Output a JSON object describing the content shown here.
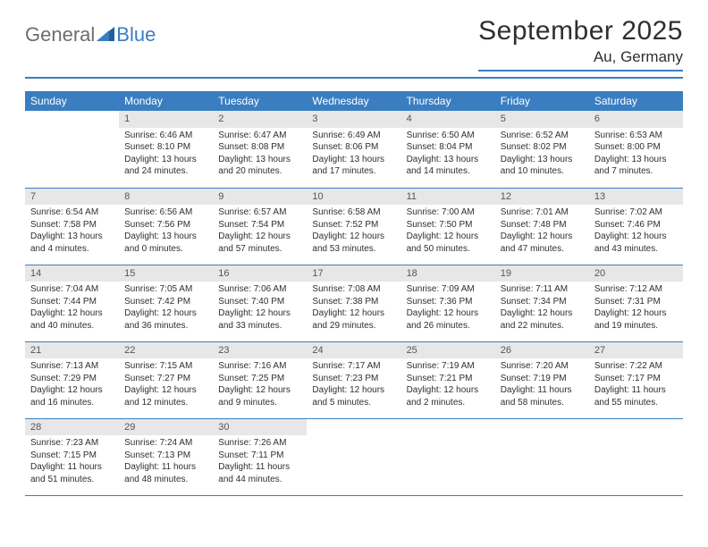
{
  "logo": {
    "text_general": "General",
    "text_blue": "Blue"
  },
  "title": "September 2025",
  "location": "Au, Germany",
  "colors": {
    "brand_blue": "#3a7ec1",
    "header_text": "#ffffff",
    "daynum_bg": "#e7e7e7",
    "body_text": "#2f2f2f",
    "logo_gray": "#6d6e71",
    "background": "#ffffff"
  },
  "typography": {
    "title_fontsize": 30,
    "location_fontsize": 17,
    "dayheader_fontsize": 12,
    "cell_fontsize": 10
  },
  "day_headers": [
    "Sunday",
    "Monday",
    "Tuesday",
    "Wednesday",
    "Thursday",
    "Friday",
    "Saturday"
  ],
  "weeks": [
    [
      null,
      {
        "n": "1",
        "sunrise": "Sunrise: 6:46 AM",
        "sunset": "Sunset: 8:10 PM",
        "day1": "Daylight: 13 hours",
        "day2": "and 24 minutes."
      },
      {
        "n": "2",
        "sunrise": "Sunrise: 6:47 AM",
        "sunset": "Sunset: 8:08 PM",
        "day1": "Daylight: 13 hours",
        "day2": "and 20 minutes."
      },
      {
        "n": "3",
        "sunrise": "Sunrise: 6:49 AM",
        "sunset": "Sunset: 8:06 PM",
        "day1": "Daylight: 13 hours",
        "day2": "and 17 minutes."
      },
      {
        "n": "4",
        "sunrise": "Sunrise: 6:50 AM",
        "sunset": "Sunset: 8:04 PM",
        "day1": "Daylight: 13 hours",
        "day2": "and 14 minutes."
      },
      {
        "n": "5",
        "sunrise": "Sunrise: 6:52 AM",
        "sunset": "Sunset: 8:02 PM",
        "day1": "Daylight: 13 hours",
        "day2": "and 10 minutes."
      },
      {
        "n": "6",
        "sunrise": "Sunrise: 6:53 AM",
        "sunset": "Sunset: 8:00 PM",
        "day1": "Daylight: 13 hours",
        "day2": "and 7 minutes."
      }
    ],
    [
      {
        "n": "7",
        "sunrise": "Sunrise: 6:54 AM",
        "sunset": "Sunset: 7:58 PM",
        "day1": "Daylight: 13 hours",
        "day2": "and 4 minutes."
      },
      {
        "n": "8",
        "sunrise": "Sunrise: 6:56 AM",
        "sunset": "Sunset: 7:56 PM",
        "day1": "Daylight: 13 hours",
        "day2": "and 0 minutes."
      },
      {
        "n": "9",
        "sunrise": "Sunrise: 6:57 AM",
        "sunset": "Sunset: 7:54 PM",
        "day1": "Daylight: 12 hours",
        "day2": "and 57 minutes."
      },
      {
        "n": "10",
        "sunrise": "Sunrise: 6:58 AM",
        "sunset": "Sunset: 7:52 PM",
        "day1": "Daylight: 12 hours",
        "day2": "and 53 minutes."
      },
      {
        "n": "11",
        "sunrise": "Sunrise: 7:00 AM",
        "sunset": "Sunset: 7:50 PM",
        "day1": "Daylight: 12 hours",
        "day2": "and 50 minutes."
      },
      {
        "n": "12",
        "sunrise": "Sunrise: 7:01 AM",
        "sunset": "Sunset: 7:48 PM",
        "day1": "Daylight: 12 hours",
        "day2": "and 47 minutes."
      },
      {
        "n": "13",
        "sunrise": "Sunrise: 7:02 AM",
        "sunset": "Sunset: 7:46 PM",
        "day1": "Daylight: 12 hours",
        "day2": "and 43 minutes."
      }
    ],
    [
      {
        "n": "14",
        "sunrise": "Sunrise: 7:04 AM",
        "sunset": "Sunset: 7:44 PM",
        "day1": "Daylight: 12 hours",
        "day2": "and 40 minutes."
      },
      {
        "n": "15",
        "sunrise": "Sunrise: 7:05 AM",
        "sunset": "Sunset: 7:42 PM",
        "day1": "Daylight: 12 hours",
        "day2": "and 36 minutes."
      },
      {
        "n": "16",
        "sunrise": "Sunrise: 7:06 AM",
        "sunset": "Sunset: 7:40 PM",
        "day1": "Daylight: 12 hours",
        "day2": "and 33 minutes."
      },
      {
        "n": "17",
        "sunrise": "Sunrise: 7:08 AM",
        "sunset": "Sunset: 7:38 PM",
        "day1": "Daylight: 12 hours",
        "day2": "and 29 minutes."
      },
      {
        "n": "18",
        "sunrise": "Sunrise: 7:09 AM",
        "sunset": "Sunset: 7:36 PM",
        "day1": "Daylight: 12 hours",
        "day2": "and 26 minutes."
      },
      {
        "n": "19",
        "sunrise": "Sunrise: 7:11 AM",
        "sunset": "Sunset: 7:34 PM",
        "day1": "Daylight: 12 hours",
        "day2": "and 22 minutes."
      },
      {
        "n": "20",
        "sunrise": "Sunrise: 7:12 AM",
        "sunset": "Sunset: 7:31 PM",
        "day1": "Daylight: 12 hours",
        "day2": "and 19 minutes."
      }
    ],
    [
      {
        "n": "21",
        "sunrise": "Sunrise: 7:13 AM",
        "sunset": "Sunset: 7:29 PM",
        "day1": "Daylight: 12 hours",
        "day2": "and 16 minutes."
      },
      {
        "n": "22",
        "sunrise": "Sunrise: 7:15 AM",
        "sunset": "Sunset: 7:27 PM",
        "day1": "Daylight: 12 hours",
        "day2": "and 12 minutes."
      },
      {
        "n": "23",
        "sunrise": "Sunrise: 7:16 AM",
        "sunset": "Sunset: 7:25 PM",
        "day1": "Daylight: 12 hours",
        "day2": "and 9 minutes."
      },
      {
        "n": "24",
        "sunrise": "Sunrise: 7:17 AM",
        "sunset": "Sunset: 7:23 PM",
        "day1": "Daylight: 12 hours",
        "day2": "and 5 minutes."
      },
      {
        "n": "25",
        "sunrise": "Sunrise: 7:19 AM",
        "sunset": "Sunset: 7:21 PM",
        "day1": "Daylight: 12 hours",
        "day2": "and 2 minutes."
      },
      {
        "n": "26",
        "sunrise": "Sunrise: 7:20 AM",
        "sunset": "Sunset: 7:19 PM",
        "day1": "Daylight: 11 hours",
        "day2": "and 58 minutes."
      },
      {
        "n": "27",
        "sunrise": "Sunrise: 7:22 AM",
        "sunset": "Sunset: 7:17 PM",
        "day1": "Daylight: 11 hours",
        "day2": "and 55 minutes."
      }
    ],
    [
      {
        "n": "28",
        "sunrise": "Sunrise: 7:23 AM",
        "sunset": "Sunset: 7:15 PM",
        "day1": "Daylight: 11 hours",
        "day2": "and 51 minutes."
      },
      {
        "n": "29",
        "sunrise": "Sunrise: 7:24 AM",
        "sunset": "Sunset: 7:13 PM",
        "day1": "Daylight: 11 hours",
        "day2": "and 48 minutes."
      },
      {
        "n": "30",
        "sunrise": "Sunrise: 7:26 AM",
        "sunset": "Sunset: 7:11 PM",
        "day1": "Daylight: 11 hours",
        "day2": "and 44 minutes."
      },
      null,
      null,
      null,
      null
    ]
  ]
}
